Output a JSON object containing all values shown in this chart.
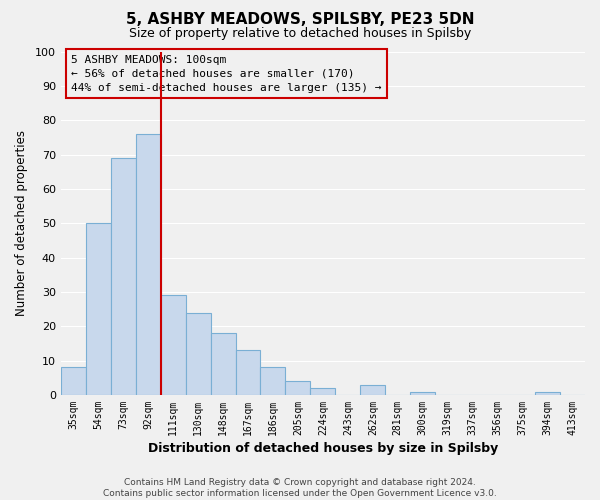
{
  "title": "5, ASHBY MEADOWS, SPILSBY, PE23 5DN",
  "subtitle": "Size of property relative to detached houses in Spilsby",
  "xlabel": "Distribution of detached houses by size in Spilsby",
  "ylabel": "Number of detached properties",
  "footer_line1": "Contains HM Land Registry data © Crown copyright and database right 2024.",
  "footer_line2": "Contains public sector information licensed under the Open Government Licence v3.0.",
  "categories": [
    "35sqm",
    "54sqm",
    "73sqm",
    "92sqm",
    "111sqm",
    "130sqm",
    "148sqm",
    "167sqm",
    "186sqm",
    "205sqm",
    "224sqm",
    "243sqm",
    "262sqm",
    "281sqm",
    "300sqm",
    "319sqm",
    "337sqm",
    "356sqm",
    "375sqm",
    "394sqm",
    "413sqm"
  ],
  "values": [
    8,
    50,
    69,
    76,
    29,
    24,
    18,
    13,
    8,
    4,
    2,
    0,
    3,
    0,
    1,
    0,
    0,
    0,
    0,
    1,
    0
  ],
  "bar_color": "#c8d8ec",
  "bar_edge_color": "#7aafd4",
  "background_color": "#f0f0f0",
  "grid_color": "#ffffff",
  "vline_color": "#cc0000",
  "vline_x": 3.5,
  "annotation_box_title": "5 ASHBY MEADOWS: 100sqm",
  "annotation_line1": "← 56% of detached houses are smaller (170)",
  "annotation_line2": "44% of semi-detached houses are larger (135) →",
  "annotation_box_edge_color": "#cc0000",
  "ylim": [
    0,
    100
  ],
  "yticks": [
    0,
    10,
    20,
    30,
    40,
    50,
    60,
    70,
    80,
    90,
    100
  ],
  "title_fontsize": 11,
  "subtitle_fontsize": 9
}
